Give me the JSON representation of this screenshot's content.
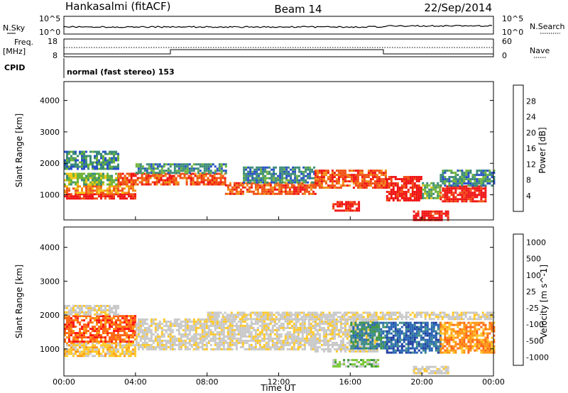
{
  "header": {
    "station": "Hankasalmi (fitACF)",
    "beam": "Beam 14",
    "date": "22/Sep/2014"
  },
  "top_panel": {
    "left_label": "N.Sky",
    "right_label": "N.Search",
    "tick_top": "10^5",
    "tick_bottom": "10^0"
  },
  "freq_panel": {
    "left_label_1": "Freq.",
    "left_label_2": "[MHz]",
    "right_label": "Nave",
    "left_ticks": [
      "18",
      "8"
    ],
    "right_ticks": [
      "60",
      "0"
    ]
  },
  "cpid": {
    "label": "CPID",
    "value": "normal (fast stereo) 153"
  },
  "colors": {
    "power": [
      "#1428ff",
      "#2850c8",
      "#3c8c78",
      "#6eb43c",
      "#f0c814",
      "#f08c14",
      "#f05014",
      "#f01414"
    ],
    "velocity": [
      "#ff1414",
      "#ff6414",
      "#ff9614",
      "#ffc828",
      "#c8c8c8",
      "#c8c8c8",
      "#78c832",
      "#3c963c",
      "#3c8c8c",
      "#2864b4",
      "#1e3ca0"
    ]
  },
  "chart_data": [
    {
      "type": "heatmap",
      "name": "power",
      "ylabel": "Slant Range [km]",
      "y_ticks": [
        "1000",
        "2000",
        "3000",
        "4000"
      ],
      "ylim": [
        200,
        4600
      ],
      "colorbar_label": "Power [dB]",
      "colorbar_ticks": [
        "4",
        "8",
        "12",
        "16",
        "20",
        "24",
        "28"
      ],
      "clim": [
        0,
        32
      ],
      "x_ticks": [
        "00:00",
        "04:00",
        "08:00",
        "12:00",
        "16:00",
        "20:00",
        "00:00"
      ],
      "xlim": [
        0,
        24
      ],
      "bands": [
        {
          "t": [
            0.0,
            4.0
          ],
          "r": [
            850,
            1050
          ],
          "level": 7
        },
        {
          "t": [
            0.0,
            4.0
          ],
          "r": [
            1050,
            1300
          ],
          "level": 5
        },
        {
          "t": [
            0.0,
            3.0
          ],
          "r": [
            1300,
            1700
          ],
          "level": 3
        },
        {
          "t": [
            0.0,
            3.0
          ],
          "r": [
            1800,
            2400
          ],
          "level": 2
        },
        {
          "t": [
            3.0,
            9.0
          ],
          "r": [
            1300,
            1700
          ],
          "level": 6
        },
        {
          "t": [
            4.0,
            9.0
          ],
          "r": [
            1700,
            2000
          ],
          "level": 2
        },
        {
          "t": [
            9.0,
            14.0
          ],
          "r": [
            1000,
            1400
          ],
          "level": 6
        },
        {
          "t": [
            10.0,
            14.0
          ],
          "r": [
            1400,
            1900
          ],
          "level": 2
        },
        {
          "t": [
            14.0,
            18.0
          ],
          "r": [
            1200,
            1800
          ],
          "level": 6
        },
        {
          "t": [
            15.0,
            16.5
          ],
          "r": [
            500,
            800
          ],
          "level": 7
        },
        {
          "t": [
            18.0,
            20.0
          ],
          "r": [
            800,
            1600
          ],
          "level": 7
        },
        {
          "t": [
            20.0,
            21.0
          ],
          "r": [
            900,
            1400
          ],
          "level": 3
        },
        {
          "t": [
            21.0,
            23.5
          ],
          "r": [
            800,
            1300
          ],
          "level": 7
        },
        {
          "t": [
            21.0,
            24.0
          ],
          "r": [
            1300,
            1800
          ],
          "level": 2
        },
        {
          "t": [
            19.5,
            21.5
          ],
          "r": [
            200,
            500
          ],
          "level": 7
        }
      ]
    },
    {
      "type": "heatmap",
      "name": "velocity",
      "ylabel": "Slant Range [km]",
      "y_ticks": [
        "1000",
        "2000",
        "3000",
        "4000"
      ],
      "ylim": [
        200,
        4600
      ],
      "colorbar_label": "Velocity [m s^-1]",
      "colorbar_ticks": [
        "1000",
        "500",
        "100",
        "25",
        "-25",
        "-100",
        "-500",
        "-1000"
      ],
      "x_ticks": [
        "00:00",
        "04:00",
        "08:00",
        "12:00",
        "16:00",
        "20:00",
        "00:00"
      ],
      "xlabel": "Time UT",
      "xlim": [
        0,
        24
      ],
      "bands": [
        {
          "t": [
            0.0,
            4.0
          ],
          "r": [
            800,
            1200
          ],
          "level": 3
        },
        {
          "t": [
            0.0,
            4.0
          ],
          "r": [
            1200,
            2000
          ],
          "level": 1
        },
        {
          "t": [
            0.0,
            3.0
          ],
          "r": [
            2000,
            2300
          ],
          "level": 4
        },
        {
          "t": [
            4.0,
            14.0
          ],
          "r": [
            1000,
            1900
          ],
          "level": 4
        },
        {
          "t": [
            14.0,
            17.5
          ],
          "r": [
            900,
            1900
          ],
          "level": 4
        },
        {
          "t": [
            16.0,
            18.0
          ],
          "r": [
            1000,
            1800
          ],
          "level": 8
        },
        {
          "t": [
            18.0,
            21.0
          ],
          "r": [
            900,
            1800
          ],
          "level": 9
        },
        {
          "t": [
            21.0,
            24.0
          ],
          "r": [
            900,
            1800
          ],
          "level": 2
        },
        {
          "t": [
            15.0,
            17.5
          ],
          "r": [
            500,
            700
          ],
          "level": 6
        },
        {
          "t": [
            19.5,
            21.5
          ],
          "r": [
            250,
            500
          ],
          "level": 4
        },
        {
          "t": [
            8.0,
            24.0
          ],
          "r": [
            1850,
            2100
          ],
          "level": 4
        }
      ]
    }
  ]
}
